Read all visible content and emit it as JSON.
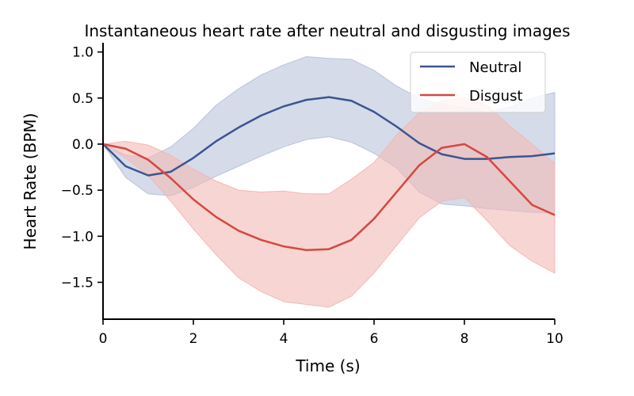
{
  "chart_data": {
    "type": "line",
    "title": "Instantaneous heart rate after neutral and disgusting images",
    "xlabel": "Time (s)",
    "ylabel": "Heart Rate (BPM)",
    "xlim": [
      0,
      10
    ],
    "ylim": [
      -1.9,
      1.1
    ],
    "xticks": [
      0,
      2,
      4,
      6,
      8,
      10
    ],
    "yticks": [
      1.0,
      0.5,
      0.0,
      -0.5,
      -1.0,
      -1.5
    ],
    "xtick_labels": [
      "0",
      "2",
      "4",
      "6",
      "8",
      "10"
    ],
    "ytick_labels": [
      "1.0",
      "0.5",
      "0.0",
      "−0.5",
      "−1.0",
      "−1.5"
    ],
    "grid": false,
    "legend_position": "top-right",
    "x": [
      0,
      0.5,
      1,
      1.5,
      2,
      2.5,
      3,
      3.5,
      4,
      4.5,
      5,
      5.5,
      6,
      6.5,
      7,
      7.5,
      8,
      8.5,
      9,
      9.5,
      10
    ],
    "series": [
      {
        "name": "Neutral",
        "color": "#3b5591",
        "band_color": "#b9c3db",
        "values": [
          0.0,
          -0.24,
          -0.34,
          -0.3,
          -0.15,
          0.03,
          0.18,
          0.31,
          0.41,
          0.48,
          0.51,
          0.47,
          0.35,
          0.19,
          0.01,
          -0.11,
          -0.16,
          -0.16,
          -0.14,
          -0.13,
          -0.1
        ],
        "upper": [
          0.0,
          -0.12,
          -0.15,
          -0.03,
          0.17,
          0.42,
          0.6,
          0.75,
          0.86,
          0.95,
          0.93,
          0.92,
          0.8,
          0.63,
          0.5,
          0.43,
          0.4,
          0.35,
          0.4,
          0.5,
          0.56
        ],
        "lower": [
          0.0,
          -0.36,
          -0.54,
          -0.56,
          -0.47,
          -0.35,
          -0.24,
          -0.13,
          -0.03,
          0.05,
          0.08,
          0.02,
          -0.1,
          -0.26,
          -0.52,
          -0.65,
          -0.67,
          -0.7,
          -0.72,
          -0.74,
          -0.75
        ]
      },
      {
        "name": "Disgust",
        "color": "#d5483f",
        "band_color": "#f2b9b6",
        "values": [
          0.0,
          -0.05,
          -0.17,
          -0.37,
          -0.6,
          -0.79,
          -0.94,
          -1.04,
          -1.11,
          -1.15,
          -1.14,
          -1.04,
          -0.81,
          -0.52,
          -0.23,
          -0.04,
          0.0,
          -0.14,
          -0.4,
          -0.66,
          -0.77
        ],
        "upper": [
          0.0,
          0.03,
          -0.01,
          -0.12,
          -0.27,
          -0.4,
          -0.5,
          -0.52,
          -0.51,
          -0.54,
          -0.54,
          -0.38,
          -0.2,
          0.1,
          0.34,
          0.47,
          0.5,
          0.42,
          0.2,
          0.0,
          -0.21
        ],
        "lower": [
          0.0,
          -0.15,
          -0.34,
          -0.62,
          -0.92,
          -1.2,
          -1.45,
          -1.6,
          -1.71,
          -1.74,
          -1.77,
          -1.65,
          -1.4,
          -1.1,
          -0.8,
          -0.62,
          -0.58,
          -0.83,
          -1.1,
          -1.27,
          -1.4
        ]
      }
    ]
  }
}
